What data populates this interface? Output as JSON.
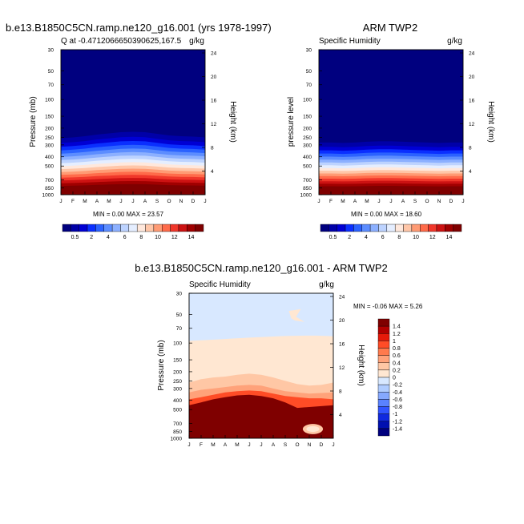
{
  "chart_data": [
    {
      "type": "contour",
      "title": "b.e13.B1850C5CN.ramp.ne120_g16.001 (yrs 1978-1997)",
      "left_label": "Q at -0.4712066650390625,167.5",
      "right_label": "g/kg",
      "ylabel": "Pressure (mb)",
      "ylabel2": "Height (km)",
      "minmax": "MIN =   0.00 MAX =  23.57",
      "ylim": [
        30,
        1000
      ],
      "surface_level": 810,
      "top_level": 255,
      "seasonal_shift": [
        0,
        0.1,
        0.25,
        0.45,
        0.6,
        0.75,
        0.8,
        0.75,
        0.55,
        0.35,
        0.25,
        0.2,
        0.1
      ]
    },
    {
      "type": "contour",
      "title": "ARM TWP2",
      "left_label": "Specific Humidity",
      "right_label": "g/kg",
      "ylabel": "pressure level",
      "ylabel2": "Height (km)",
      "minmax": "MIN =   0.00 MAX =  18.60",
      "ylim": [
        30,
        1000
      ],
      "surface_level": 830,
      "top_level": 300,
      "seasonal_shift": [
        0.3,
        0.3,
        0.25,
        0.3,
        0.4,
        0.45,
        0.45,
        0.4,
        0.35,
        0.3,
        0.25,
        0.3,
        0.3
      ]
    },
    {
      "type": "contour",
      "title": "b.e13.B1850C5CN.ramp.ne120_g16.001 - ARM TWP2",
      "left_label": "Specific Humidity",
      "right_label": "g/kg",
      "ylabel": "Pressure (mb)",
      "ylabel2": "Height (km)",
      "minmax": "MIN =  -0.06 MAX =   5.26",
      "ylim": [
        30,
        1000
      ]
    }
  ],
  "x_ticks": [
    "J",
    "F",
    "M",
    "A",
    "M",
    "J",
    "J",
    "A",
    "S",
    "O",
    "N",
    "D",
    "J"
  ],
  "p_ticks": [
    "30",
    "50",
    "70",
    "100",
    "150",
    "200",
    "250",
    "300",
    "400",
    "500",
    "700",
    "850",
    "1000"
  ],
  "p_tick_values": [
    30,
    50,
    70,
    100,
    150,
    200,
    250,
    300,
    400,
    500,
    700,
    850,
    1000
  ],
  "height_ticks": [
    "24",
    "20",
    "16",
    "12",
    "8",
    "4"
  ],
  "height_tick_values": [
    24,
    20,
    16,
    12,
    8,
    4
  ],
  "levels_abs": [
    "0.5",
    "2",
    "4",
    "6",
    "8",
    "10",
    "12",
    "14"
  ],
  "levels_diff": [
    "1.4",
    "1.2",
    "1",
    "0.8",
    "0.6",
    "0.4",
    "0.2",
    "0",
    "-0.2",
    "-0.4",
    "-0.6",
    "-0.8",
    "-1",
    "-1.2",
    "-1.4"
  ],
  "colors_abs": [
    "#00007f",
    "#0000a8",
    "#0000d4",
    "#0a2fff",
    "#2b62ff",
    "#5c8dff",
    "#8cb0ff",
    "#bdd3ff",
    "#e5eeff",
    "#ffe8dc",
    "#ffc6a8",
    "#ff9b74",
    "#ff6b4a",
    "#f0372a",
    "#cc1212",
    "#a00000",
    "#7f0000"
  ],
  "colors_diff": [
    "#7f0000",
    "#b20000",
    "#e61a0a",
    "#ff4c26",
    "#ff7a4d",
    "#ffa27a",
    "#ffc7a5",
    "#ffe7d2",
    "#d8e8ff",
    "#b0ccff",
    "#85a8ff",
    "#5a82ff",
    "#3154ff",
    "#1029e0",
    "#0010b0",
    "#00007f"
  ]
}
